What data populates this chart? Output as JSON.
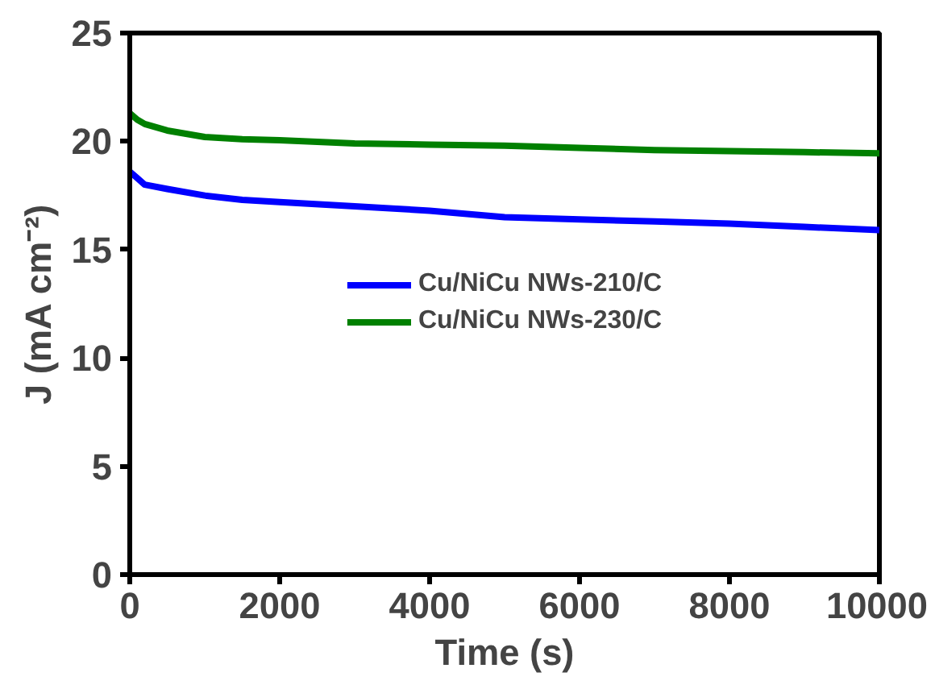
{
  "chart_data": {
    "type": "line",
    "xlabel": "Time (s)",
    "ylabel": "J (mA cm⁻²)",
    "xlim": [
      0,
      10000
    ],
    "ylim": [
      0,
      25
    ],
    "xticks": [
      0,
      2000,
      4000,
      6000,
      8000,
      10000
    ],
    "yticks": [
      0,
      5,
      10,
      15,
      20,
      25
    ],
    "grid": false,
    "legend": "center",
    "line_style": "solid",
    "x": [
      0,
      100,
      200,
      500,
      1000,
      1500,
      2000,
      3000,
      4000,
      5000,
      6000,
      7000,
      8000,
      9000,
      10000
    ],
    "series": [
      {
        "name": "Cu/NiCu NWs-210/C",
        "color": "#0000ff",
        "values": [
          18.6,
          18.3,
          18.0,
          17.8,
          17.5,
          17.3,
          17.2,
          17.0,
          16.8,
          16.5,
          16.4,
          16.3,
          16.2,
          16.05,
          15.9
        ]
      },
      {
        "name": "Cu/NiCu NWs-230/C",
        "color": "#008000",
        "values": [
          21.3,
          21.0,
          20.8,
          20.5,
          20.2,
          20.1,
          20.05,
          19.9,
          19.85,
          19.8,
          19.7,
          19.6,
          19.55,
          19.5,
          19.45
        ]
      }
    ]
  }
}
